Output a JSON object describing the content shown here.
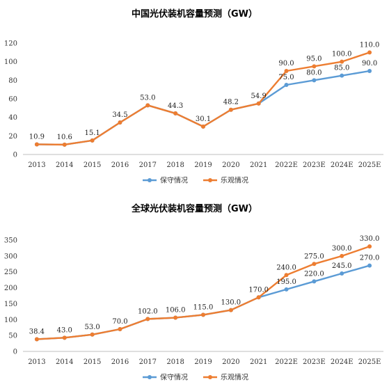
{
  "chart_data": [
    {
      "type": "line",
      "title": "中国光伏装机容量预测（GW）",
      "categories": [
        "2013",
        "2014",
        "2015",
        "2016",
        "2017",
        "2018",
        "2019",
        "2020",
        "2021",
        "2022E",
        "2023E",
        "2024E",
        "2025E"
      ],
      "ylim": [
        0,
        120
      ],
      "yticks": [
        "0",
        "20",
        "40",
        "60",
        "80",
        "100",
        "120"
      ],
      "grid": false,
      "legend_position": "bottom",
      "series": [
        {
          "name": "保守情况",
          "color": "#5B9BD5",
          "values": [
            10.9,
            10.6,
            15.1,
            34.5,
            53.0,
            44.3,
            30.1,
            48.2,
            54.9,
            75.0,
            80.0,
            85.0,
            90.0
          ],
          "labels": [
            "",
            "",
            "",
            "",
            "",
            "",
            "",
            "",
            "",
            "75.0",
            "80.0",
            "85.0",
            "90.0"
          ]
        },
        {
          "name": "乐观情况",
          "color": "#ED7D31",
          "values": [
            10.9,
            10.6,
            15.1,
            34.5,
            53.0,
            44.3,
            30.1,
            48.2,
            54.9,
            90.0,
            95.0,
            100.0,
            110.0
          ],
          "labels": [
            "10.9",
            "10.6",
            "15.1",
            "34.5",
            "53.0",
            "44.3",
            "30.1",
            "48.2",
            "54.9",
            "90.0",
            "95.0",
            "100.0",
            "110.0"
          ]
        }
      ]
    },
    {
      "type": "line",
      "title": "全球光伏装机容量预测（GW）",
      "categories": [
        "2013",
        "2014",
        "2015",
        "2016",
        "2017",
        "2018",
        "2019",
        "2020",
        "2021",
        "2022E",
        "2023E",
        "2024E",
        "2025E"
      ],
      "ylim": [
        0,
        350
      ],
      "yticks": [
        "0",
        "50",
        "100",
        "150",
        "200",
        "250",
        "300",
        "350"
      ],
      "grid": false,
      "legend_position": "bottom",
      "series": [
        {
          "name": "保守情况",
          "color": "#5B9BD5",
          "values": [
            38.4,
            43.0,
            53.0,
            70.0,
            102.0,
            106.0,
            115.0,
            130.0,
            170.0,
            195.0,
            220.0,
            245.0,
            270.0
          ],
          "labels": [
            "",
            "",
            "",
            "",
            "",
            "",
            "",
            "",
            "",
            "195.0",
            "220.0",
            "245.0",
            "270.0"
          ]
        },
        {
          "name": "乐观情况",
          "color": "#ED7D31",
          "values": [
            38.4,
            43.0,
            53.0,
            70.0,
            102.0,
            106.0,
            115.0,
            130.0,
            170.0,
            240.0,
            275.0,
            300.0,
            330.0
          ],
          "labels": [
            "38.4",
            "43.0",
            "53.0",
            "70.0",
            "102.0",
            "106.0",
            "115.0",
            "130.0",
            "170.0",
            "240.0",
            "275.0",
            "300.0",
            "330.0"
          ]
        }
      ]
    }
  ]
}
